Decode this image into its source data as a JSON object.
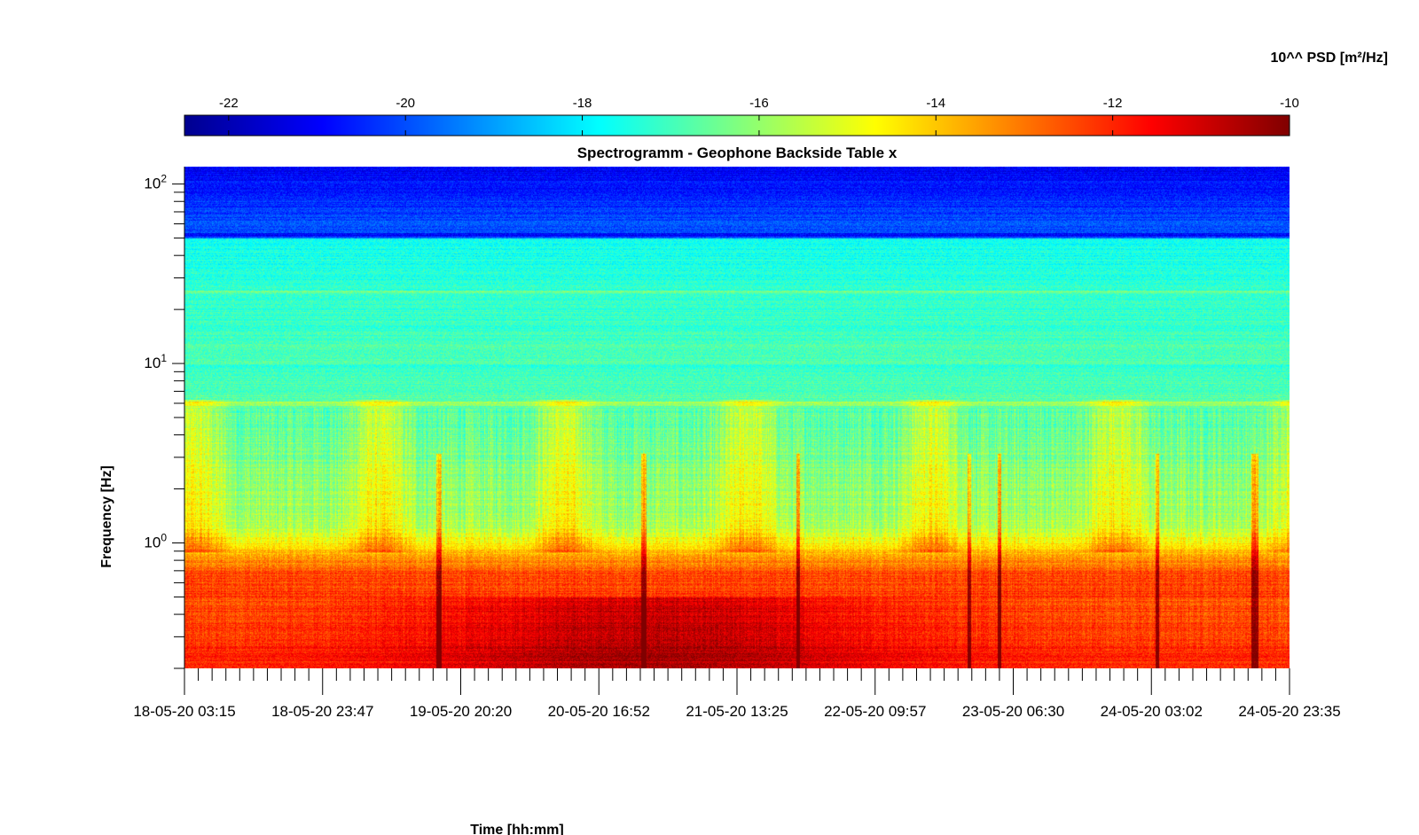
{
  "chart_data": {
    "type": "heatmap",
    "title": "Spectrogramm - Geophone Backside Table x",
    "xlabel": "Time [hh:mm]",
    "ylabel": "Frequency [Hz]",
    "yscale": "log",
    "ylim": [
      0.2,
      125
    ],
    "x_tick_labels": [
      "18-05-20 03:15",
      "18-05-20 23:47",
      "19-05-20 20:20",
      "20-05-20 16:52",
      "21-05-20 13:25",
      "22-05-20 09:57",
      "23-05-20 06:30",
      "24-05-20 03:02",
      "24-05-20 23:35"
    ],
    "y_ticks": [
      {
        "value": 1,
        "base": "10",
        "exp": "0"
      },
      {
        "value": 10,
        "base": "10",
        "exp": "1"
      },
      {
        "value": 100,
        "base": "10",
        "exp": "2"
      }
    ],
    "colorbar": {
      "label": "10^^ PSD [m²/Hz]",
      "range": [
        -22.5,
        -10
      ],
      "ticks": [
        "-22",
        "-20",
        "-18",
        "-16",
        "-14",
        "-12",
        "-10"
      ],
      "colormap": "jet"
    },
    "grid": false
  }
}
